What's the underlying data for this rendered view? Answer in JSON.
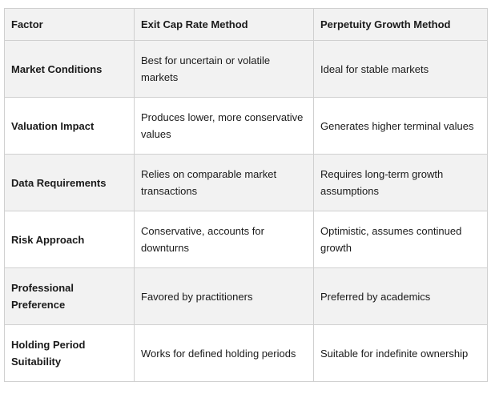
{
  "table": {
    "headers": [
      "Factor",
      "Exit Cap Rate Method",
      "Perpetuity Growth Method"
    ],
    "rows": [
      {
        "factor": "Market Conditions",
        "exit_cap": "Best for uncertain or volatile markets",
        "perpetuity": "Ideal for stable markets"
      },
      {
        "factor": "Valuation Impact",
        "exit_cap": "Produces lower, more conservative values",
        "perpetuity": "Generates higher terminal values"
      },
      {
        "factor": "Data Requirements",
        "exit_cap": "Relies on comparable market transactions",
        "perpetuity": "Requires long-term growth assumptions"
      },
      {
        "factor": "Risk Approach",
        "exit_cap": "Conservative, accounts for downturns",
        "perpetuity": "Optimistic, assumes continued growth"
      },
      {
        "factor": "Professional Preference",
        "exit_cap": "Favored by practitioners",
        "perpetuity": "Preferred by academics"
      },
      {
        "factor": "Holding Period Suitability",
        "exit_cap": "Works for defined holding periods",
        "perpetuity": "Suitable for indefinite ownership"
      }
    ]
  }
}
